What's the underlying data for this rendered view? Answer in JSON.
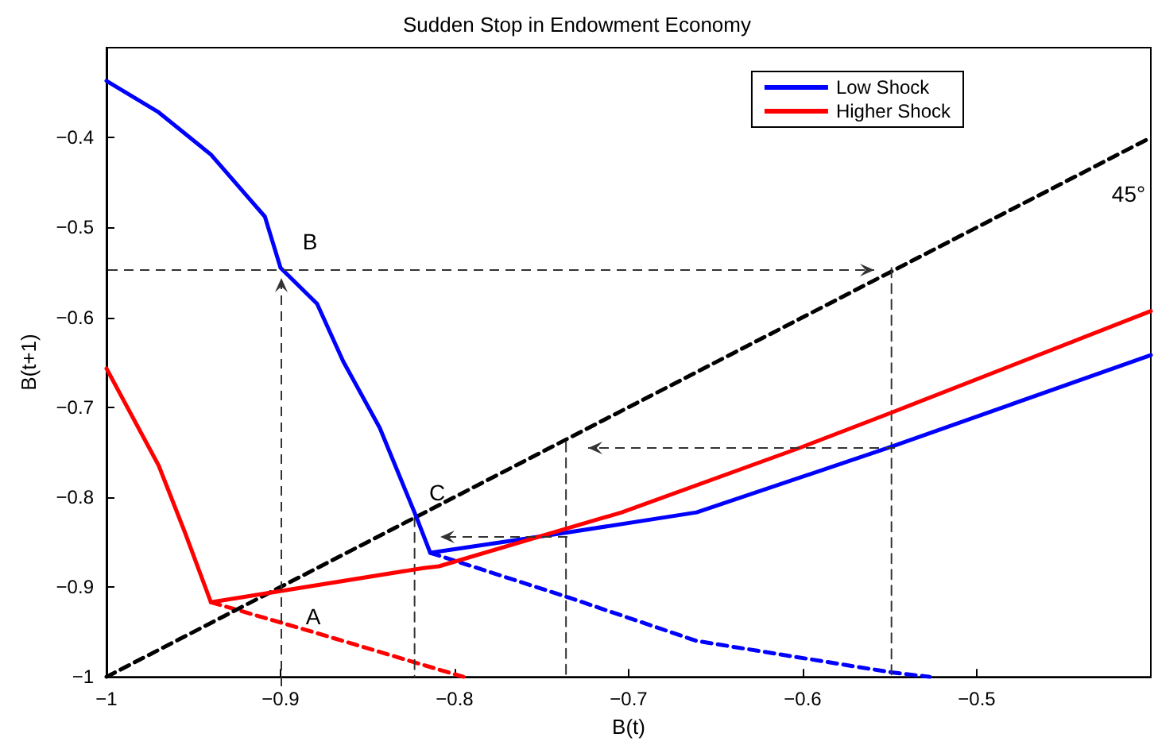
{
  "chart_data": {
    "type": "line",
    "title": "Sudden Stop in Endowment Economy",
    "xlabel": "B(t)",
    "ylabel": "B(t+1)",
    "xlim": [
      -1,
      -0.4
    ],
    "xticks": [
      -1,
      -0.9,
      -0.8,
      -0.7,
      -0.6,
      -0.5
    ],
    "ylim": [
      -1,
      -0.3
    ],
    "yticks": [
      -1,
      -0.9,
      -0.8,
      -0.7,
      -0.6,
      -0.5,
      -0.4
    ],
    "grid": false,
    "legend": "top right",
    "marker": "none",
    "line_style": "solid",
    "series": [
      {
        "name": "Low Shock",
        "color": "#0000ff",
        "x": [
          -1,
          -0.97,
          -0.94,
          -0.909,
          -0.9,
          -0.879,
          -0.864,
          -0.843,
          -0.822,
          -0.814,
          -0.734,
          -0.661,
          -0.549,
          -0.4
        ],
        "values": [
          -0.337,
          -0.372,
          -0.419,
          -0.488,
          -0.545,
          -0.585,
          -0.649,
          -0.723,
          -0.822,
          -0.862,
          -0.839,
          -0.817,
          -0.744,
          -0.642
        ]
      },
      {
        "color": "#0000ff",
        "line_style": "dashed",
        "x": [
          -0.814,
          -0.734,
          -0.661,
          -0.549,
          -0.527
        ],
        "values": [
          -0.862,
          -0.912,
          -0.96,
          -0.995,
          -1
        ]
      },
      {
        "name": "Higher Shock",
        "color": "#ff0000",
        "x": [
          -1,
          -0.97,
          -0.955,
          -0.94,
          -0.818,
          -0.809,
          -0.734,
          -0.704,
          -0.6,
          -0.549,
          -0.4
        ],
        "values": [
          -0.657,
          -0.765,
          -0.839,
          -0.917,
          -0.879,
          -0.877,
          -0.834,
          -0.817,
          -0.744,
          -0.706,
          -0.593
        ]
      },
      {
        "color": "#ff0000",
        "line_style": "dashed",
        "x": [
          -0.94,
          -0.885,
          -0.795
        ],
        "values": [
          -0.917,
          -0.948,
          -1
        ]
      },
      {
        "color": "#000000",
        "line_style": "dashed",
        "x": [
          -1,
          -0.4
        ],
        "values": [
          -1,
          -0.4
        ]
      },
      {
        "color": "#333333",
        "line_style": "dashed",
        "x": [
          -0.549,
          -0.549
        ],
        "values": [
          -0.545,
          -1
        ]
      },
      {
        "color": "#333333",
        "line_style": "dashed",
        "x": [
          -0.736,
          -0.736
        ],
        "values": [
          -0.739,
          -1
        ]
      },
      {
        "color": "#333333",
        "line_style": "dashed",
        "x": [
          -0.823,
          -0.823
        ],
        "values": [
          -0.822,
          -1
        ]
      }
    ],
    "annotations": [
      "B",
      "C",
      "A",
      "45°"
    ]
  }
}
